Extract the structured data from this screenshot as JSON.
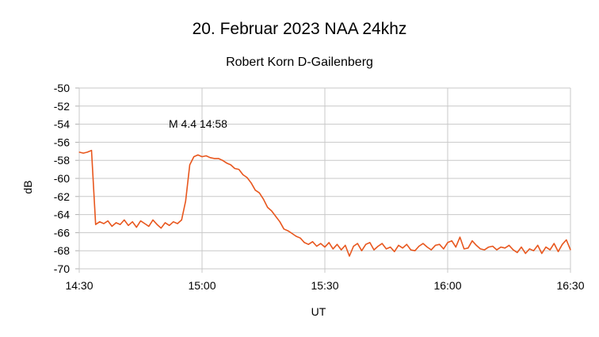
{
  "chart_data": {
    "type": "line",
    "title": "20. Februar 2023 NAA 24khz",
    "subtitle": "Robert Korn D-Gailenberg",
    "xlabel": "UT",
    "ylabel": "dB",
    "ylim": [
      -70,
      -50
    ],
    "xlim": [
      "14:30",
      "16:30"
    ],
    "yticks": [
      "-50",
      "-52",
      "-54",
      "-56",
      "-58",
      "-60",
      "-62",
      "-64",
      "-66",
      "-68",
      "-70"
    ],
    "xticks": [
      "14:30",
      "15:00",
      "15:30",
      "16:00",
      "16:30"
    ],
    "grid": true,
    "line_color": "#e8571e",
    "annotation": "M 4.4  14:58",
    "x": [
      "14:30",
      "14:31",
      "14:32",
      "14:33",
      "14:34",
      "14:35",
      "14:36",
      "14:37",
      "14:38",
      "14:39",
      "14:40",
      "14:41",
      "14:42",
      "14:43",
      "14:44",
      "14:45",
      "14:46",
      "14:47",
      "14:48",
      "14:49",
      "14:50",
      "14:51",
      "14:52",
      "14:53",
      "14:54",
      "14:55",
      "14:56",
      "14:57",
      "14:58",
      "14:59",
      "15:00",
      "15:01",
      "15:02",
      "15:03",
      "15:04",
      "15:05",
      "15:06",
      "15:07",
      "15:08",
      "15:09",
      "15:10",
      "15:11",
      "15:12",
      "15:13",
      "15:14",
      "15:15",
      "15:16",
      "15:17",
      "15:18",
      "15:19",
      "15:20",
      "15:21",
      "15:22",
      "15:23",
      "15:24",
      "15:25",
      "15:26",
      "15:27",
      "15:28",
      "15:29",
      "15:30",
      "15:31",
      "15:32",
      "15:33",
      "15:34",
      "15:35",
      "15:36",
      "15:37",
      "15:38",
      "15:39",
      "15:40",
      "15:41",
      "15:42",
      "15:43",
      "15:44",
      "15:45",
      "15:46",
      "15:47",
      "15:48",
      "15:49",
      "15:50",
      "15:51",
      "15:52",
      "15:53",
      "15:54",
      "15:55",
      "15:56",
      "15:57",
      "15:58",
      "15:59",
      "16:00",
      "16:01",
      "16:02",
      "16:03",
      "16:04",
      "16:05",
      "16:06",
      "16:07",
      "16:08",
      "16:09",
      "16:10",
      "16:11",
      "16:12",
      "16:13",
      "16:14",
      "16:15",
      "16:16",
      "16:17",
      "16:18",
      "16:19",
      "16:20",
      "16:21",
      "16:22",
      "16:23",
      "16:24",
      "16:25",
      "16:26",
      "16:27",
      "16:28",
      "16:29",
      "16:30"
    ],
    "values": [
      -57.1,
      -57.2,
      -57.1,
      -56.9,
      -65.1,
      -64.8,
      -65.0,
      -64.7,
      -65.3,
      -64.9,
      -65.1,
      -64.6,
      -65.2,
      -64.8,
      -65.4,
      -64.7,
      -65.0,
      -65.3,
      -64.6,
      -65.1,
      -65.5,
      -64.9,
      -65.2,
      -64.8,
      -65.0,
      -64.6,
      -62.5,
      -58.5,
      -57.6,
      -57.4,
      -57.6,
      -57.5,
      -57.7,
      -57.8,
      -57.8,
      -58.0,
      -58.3,
      -58.5,
      -58.9,
      -59.0,
      -59.6,
      -59.9,
      -60.5,
      -61.3,
      -61.6,
      -62.3,
      -63.2,
      -63.6,
      -64.2,
      -64.8,
      -65.6,
      -65.8,
      -66.1,
      -66.4,
      -66.6,
      -67.1,
      -67.3,
      -67.0,
      -67.5,
      -67.2,
      -67.6,
      -67.1,
      -67.8,
      -67.3,
      -67.9,
      -67.4,
      -68.6,
      -67.5,
      -67.2,
      -68.0,
      -67.3,
      -67.1,
      -67.9,
      -67.5,
      -67.2,
      -67.8,
      -67.6,
      -68.1,
      -67.4,
      -67.7,
      -67.3,
      -67.9,
      -68.0,
      -67.5,
      -67.2,
      -67.6,
      -67.9,
      -67.4,
      -67.3,
      -67.8,
      -67.1,
      -66.9,
      -67.6,
      -66.5,
      -67.8,
      -67.7,
      -66.9,
      -67.4,
      -67.8,
      -67.9,
      -67.6,
      -67.5,
      -67.9,
      -67.6,
      -67.7,
      -67.4,
      -67.9,
      -68.2,
      -67.6,
      -68.3,
      -67.8,
      -68.0,
      -67.4,
      -68.3,
      -67.6,
      -67.9,
      -67.2,
      -68.1,
      -67.3,
      -66.8,
      -67.9
    ]
  }
}
